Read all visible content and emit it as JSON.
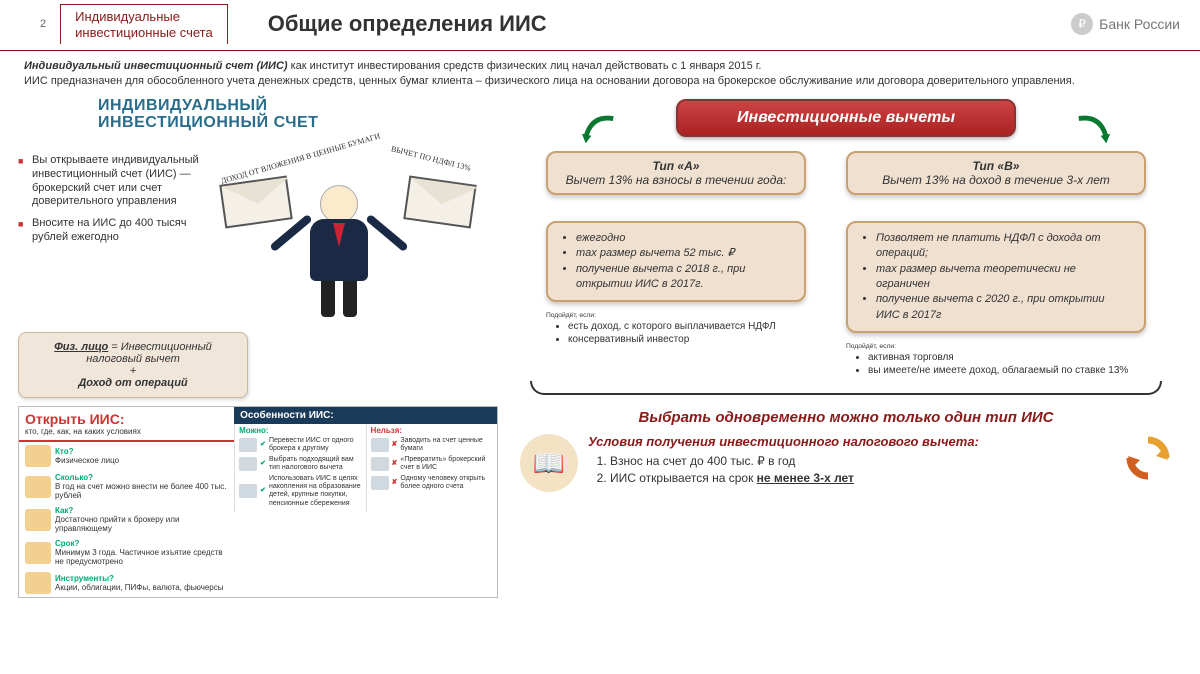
{
  "page_number": "2",
  "tab_line1": "Индивидуальные",
  "tab_line2": "инвестиционные счета",
  "title": "Общие определения ИИС",
  "bank_label": "Банк России",
  "intro_bold": "Индивидуальный инвестиционный счет (ИИС)",
  "intro1": " как институт инвестирования средств физических лиц начал действовать с 1 января 2015 г.",
  "intro2": "ИИС предназначен для обособленного учета денежных средств, ценных бумаг клиента – физического лица на основании договора на брокерское обслуживание или договора доверительного управления.",
  "iis_heading1": "ИНДИВИДУАЛЬНЫЙ",
  "iis_heading2": "ИНВЕСТИЦИОННЫЙ СЧЕТ",
  "bullet1": "Вы открываете индивидуальный инвестиционный счет (ИИС) — брокерский счет или счет доверительного управления",
  "bullet2": "Вносите на ИИС до 400 тысяч рублей ежегодно",
  "arc1": "ДОХОД ОТ ВЛОЖЕНИЯ В ЦЕННЫЕ БУМАГИ",
  "arc2": "ВЫЧЕТ ПО НДФЛ 13%",
  "formula": {
    "a": "Физ. лицо",
    "b": " = Инвестиционный налоговый вычет",
    "plus": "+",
    "c": "Доход от операций"
  },
  "open": {
    "title": "Открыть ИИС:",
    "sub": "кто, где, как, на каких условиях",
    "qa": [
      {
        "q": "Кто?",
        "a": "Физическое лицо"
      },
      {
        "q": "Сколько?",
        "a": "В год на счет можно внести не более 400 тыс. рублей"
      },
      {
        "q": "Как?",
        "a": "Достаточно прийти к брокеру или управляющему"
      },
      {
        "q": "Срок?",
        "a": "Минимум 3 года. Частичное изъятие средств не предусмотрено"
      },
      {
        "q": "Инструменты?",
        "a": "Акции, облигации, ПИФы, валюта, фьючерсы"
      }
    ],
    "feat_title": "Особенности ИИС:",
    "good_h": "Можно:",
    "bad_h": "Нельзя:",
    "good": [
      "Перевести ИИС от одного брокера к другому",
      "Выбрать подходящий вам тип налогового вычета",
      "Использовать ИИС в целях накопления на образование детей, крупные покупки, пенсионные сбережения"
    ],
    "bad": [
      "Заводить на счет ценные бумаги",
      "«Превратить» брокерский счет в ИИС",
      "Одному человеку открыть более одного счета"
    ]
  },
  "deductions_header": "Инвестиционные вычеты",
  "typeA": {
    "head_t": "Тип «А»",
    "head_b": "Вычет 13%  на взносы в течении года:",
    "items": [
      "ежегодно",
      "max размер вычета 52 тыс. ₽",
      "получение вычета с 2018 г., при открытии ИИС в 2017г."
    ],
    "suit_h": "Подойдёт, если:",
    "suit": [
      "есть доход, с которого выплачивается НДФЛ",
      "консервативный инвестор"
    ]
  },
  "typeB": {
    "head_t": "Тип «В»",
    "head_b": "Вычет 13% на доход в течение 3-х лет",
    "items": [
      "Позволяет не платить НДФЛ с дохода от операций;",
      "max размер вычета теоретически не ограничен",
      "получение вычета с 2020 г., при открытии ИИС в 2017г"
    ],
    "suit_h": "Подойдёт, если:",
    "suit": [
      "активная торговля",
      "вы имеете/не имеете доход, облагаемый по ставке 13%"
    ]
  },
  "only_one": "Выбрать одновременно можно  только один тип ИИС",
  "cond_h": "Условия получения инвестиционного налогового вычета:",
  "cond1": "Взнос на счет до 400 тыс. ₽ в год",
  "cond2a": "ИИС открывается на срок ",
  "cond2b": "не менее 3-х лет",
  "colors": {
    "maroon": "#8a1a1a",
    "peach": "#efe0d0",
    "peach_border": "#c9a070",
    "green": "#0a7830"
  }
}
